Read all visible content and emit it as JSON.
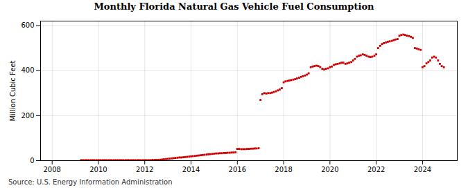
{
  "chart_data": {
    "type": "scatter",
    "title": "Monthly Florida Natural Gas Vehicle Fuel Consumption",
    "ylabel": "Million Cubic Feet",
    "source": "Source: U.S. Energy Information Administration",
    "color": "#cc0000",
    "marker": "square",
    "grid": true,
    "xlim": [
      2007.5,
      2025.5
    ],
    "xticks": [
      2008,
      2010,
      2012,
      2014,
      2016,
      2018,
      2020,
      2022,
      2024
    ],
    "ylim": [
      0,
      620
    ],
    "yticks": [
      0,
      200,
      400,
      600
    ],
    "x": [
      2009.25,
      2009.33,
      2009.42,
      2009.5,
      2009.58,
      2009.67,
      2009.75,
      2009.83,
      2009.92,
      2010.0,
      2010.08,
      2010.17,
      2010.25,
      2010.33,
      2010.42,
      2010.5,
      2010.58,
      2010.67,
      2010.75,
      2010.83,
      2010.92,
      2011.0,
      2011.08,
      2011.17,
      2011.25,
      2011.33,
      2011.42,
      2011.5,
      2011.58,
      2011.67,
      2011.75,
      2011.83,
      2011.92,
      2012.0,
      2012.08,
      2012.17,
      2012.25,
      2012.33,
      2012.42,
      2012.5,
      2012.58,
      2012.67,
      2012.75,
      2012.83,
      2012.92,
      2013.0,
      2013.08,
      2013.17,
      2013.25,
      2013.33,
      2013.42,
      2013.5,
      2013.58,
      2013.67,
      2013.75,
      2013.83,
      2013.92,
      2014.0,
      2014.08,
      2014.17,
      2014.25,
      2014.33,
      2014.42,
      2014.5,
      2014.58,
      2014.67,
      2014.75,
      2014.83,
      2014.92,
      2015.0,
      2015.08,
      2015.17,
      2015.25,
      2015.33,
      2015.42,
      2015.5,
      2015.58,
      2015.67,
      2015.75,
      2015.83,
      2015.92,
      2016.0,
      2016.08,
      2016.17,
      2016.25,
      2016.33,
      2016.42,
      2016.5,
      2016.58,
      2016.67,
      2016.75,
      2016.83,
      2016.92,
      2017.0,
      2017.08,
      2017.17,
      2017.25,
      2017.33,
      2017.42,
      2017.5,
      2017.58,
      2017.67,
      2017.75,
      2017.83,
      2017.92,
      2018.0,
      2018.08,
      2018.17,
      2018.25,
      2018.33,
      2018.42,
      2018.5,
      2018.58,
      2018.67,
      2018.75,
      2018.83,
      2018.92,
      2019.0,
      2019.08,
      2019.17,
      2019.25,
      2019.33,
      2019.42,
      2019.5,
      2019.58,
      2019.67,
      2019.75,
      2019.83,
      2019.92,
      2020.0,
      2020.08,
      2020.17,
      2020.25,
      2020.33,
      2020.42,
      2020.5,
      2020.58,
      2020.67,
      2020.75,
      2020.83,
      2020.92,
      2021.0,
      2021.08,
      2021.17,
      2021.25,
      2021.33,
      2021.42,
      2021.5,
      2021.58,
      2021.67,
      2021.75,
      2021.83,
      2021.92,
      2022.0,
      2022.08,
      2022.17,
      2022.25,
      2022.33,
      2022.42,
      2022.5,
      2022.58,
      2022.67,
      2022.75,
      2022.83,
      2022.92,
      2023.0,
      2023.08,
      2023.17,
      2023.25,
      2023.33,
      2023.42,
      2023.5,
      2023.58,
      2023.67,
      2023.75,
      2023.83,
      2023.92,
      2024.0,
      2024.08,
      2024.17,
      2024.25,
      2024.33,
      2024.42,
      2024.5,
      2024.58,
      2024.67,
      2024.75,
      2024.83,
      2024.92
    ],
    "values": [
      2,
      2,
      2,
      2,
      2,
      2,
      2,
      2,
      2,
      2,
      2,
      2,
      2,
      2,
      2,
      2,
      2,
      2,
      2,
      2,
      2,
      2,
      2,
      2,
      2,
      2,
      2,
      2,
      2,
      2,
      2,
      2,
      2,
      2,
      2,
      2,
      2,
      3,
      3,
      3,
      3,
      4,
      5,
      6,
      7,
      8,
      9,
      10,
      11,
      12,
      13,
      14,
      14,
      15,
      16,
      17,
      18,
      19,
      20,
      21,
      22,
      23,
      24,
      25,
      26,
      27,
      28,
      29,
      30,
      31,
      32,
      32,
      33,
      33,
      34,
      34,
      35,
      35,
      36,
      36,
      37,
      52,
      52,
      51,
      51,
      51,
      52,
      52,
      53,
      53,
      54,
      54,
      55,
      270,
      295,
      300,
      298,
      300,
      300,
      302,
      305,
      308,
      312,
      316,
      322,
      348,
      352,
      354,
      356,
      358,
      360,
      362,
      365,
      368,
      372,
      375,
      378,
      382,
      388,
      415,
      418,
      420,
      422,
      420,
      415,
      408,
      405,
      408,
      410,
      415,
      418,
      425,
      428,
      430,
      432,
      435,
      435,
      430,
      432,
      435,
      438,
      445,
      452,
      462,
      466,
      468,
      472,
      470,
      466,
      462,
      460,
      462,
      466,
      472,
      500,
      510,
      518,
      522,
      525,
      528,
      530,
      532,
      535,
      538,
      540,
      555,
      558,
      560,
      558,
      555,
      553,
      550,
      545,
      500,
      498,
      495,
      492,
      415,
      420,
      432,
      438,
      445,
      458,
      462,
      458,
      445,
      430,
      420,
      415
    ]
  }
}
